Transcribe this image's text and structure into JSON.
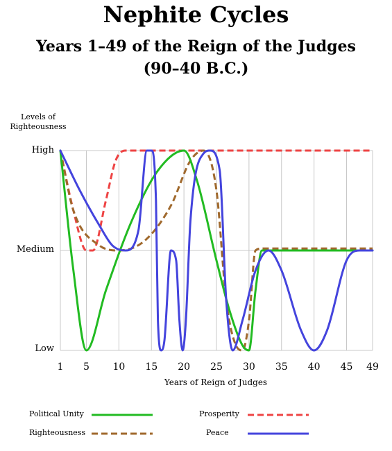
{
  "title": "Nephite Cycles",
  "subtitle": "Years 1–49 of the Reign of the Judges",
  "subtitle2": "(90–40 B.C.)",
  "chart_data": {
    "type": "line",
    "ylabel": "Levels of Righteousness",
    "xlabel": "Years of Reign of Judges",
    "y_categories": [
      "Low",
      "Medium",
      "High"
    ],
    "ylim": [
      0,
      2
    ],
    "xlim": [
      1,
      49
    ],
    "x_ticks": [
      1,
      5,
      10,
      15,
      20,
      25,
      30,
      35,
      40,
      45,
      49
    ],
    "grid": true,
    "series": [
      {
        "name": "Political Unity",
        "color": "#22bb22",
        "dash": "solid",
        "points": [
          [
            1,
            2
          ],
          [
            3,
            0.8
          ],
          [
            5,
            0
          ],
          [
            8,
            0.6
          ],
          [
            12,
            1.3
          ],
          [
            16,
            1.8
          ],
          [
            20,
            2
          ],
          [
            22,
            1.7
          ],
          [
            25,
            0.9
          ],
          [
            27,
            0.4
          ],
          [
            29,
            0.05
          ],
          [
            30,
            0
          ],
          [
            31,
            0.6
          ],
          [
            32,
            1
          ],
          [
            49,
            1
          ]
        ]
      },
      {
        "name": "Prosperity",
        "color": "#ee4444",
        "dash": "dashed",
        "points": [
          [
            1,
            2
          ],
          [
            3,
            1.4
          ],
          [
            5,
            1
          ],
          [
            6,
            1
          ],
          [
            8,
            1.5
          ],
          [
            9.5,
            1.9
          ],
          [
            11,
            2
          ],
          [
            49,
            2
          ]
        ]
      },
      {
        "name": "Righteousness",
        "color": "#a0692d",
        "dash": "dashed",
        "points": [
          [
            1,
            2
          ],
          [
            3,
            1.4
          ],
          [
            7,
            1.05
          ],
          [
            10,
            1
          ],
          [
            14,
            1.1
          ],
          [
            18,
            1.45
          ],
          [
            21,
            1.9
          ],
          [
            23,
            2
          ],
          [
            25,
            1.6
          ],
          [
            26.5,
            0.5
          ],
          [
            28,
            0.05
          ],
          [
            29,
            0
          ],
          [
            30,
            0.3
          ],
          [
            31,
            1
          ],
          [
            32,
            1.02
          ],
          [
            49,
            1.02
          ]
        ]
      },
      {
        "name": "Peace",
        "color": "#4444dd",
        "dash": "solid",
        "points": [
          [
            1,
            2
          ],
          [
            4,
            1.6
          ],
          [
            7,
            1.25
          ],
          [
            9,
            1.05
          ],
          [
            11,
            1
          ],
          [
            13,
            1.2
          ],
          [
            14.3,
            2
          ],
          [
            15,
            2
          ],
          [
            15.7,
            1.5
          ],
          [
            16,
            0.3
          ],
          [
            16.5,
            0
          ],
          [
            17,
            0.1
          ],
          [
            18,
            1
          ],
          [
            18.8,
            0.9
          ],
          [
            19.3,
            0.3
          ],
          [
            19.8,
            0
          ],
          [
            20.3,
            0.3
          ],
          [
            21,
            1.3
          ],
          [
            23,
            1.97
          ],
          [
            24,
            2
          ],
          [
            25.5,
            1.8
          ],
          [
            26.5,
            0.5
          ],
          [
            27.5,
            0
          ],
          [
            29,
            0.3
          ],
          [
            31,
            0.8
          ],
          [
            33,
            1
          ],
          [
            35,
            0.8
          ],
          [
            38,
            0.2
          ],
          [
            40,
            0
          ],
          [
            42,
            0.2
          ],
          [
            45,
            0.9
          ],
          [
            47,
            1
          ],
          [
            49,
            1
          ]
        ]
      }
    ]
  }
}
